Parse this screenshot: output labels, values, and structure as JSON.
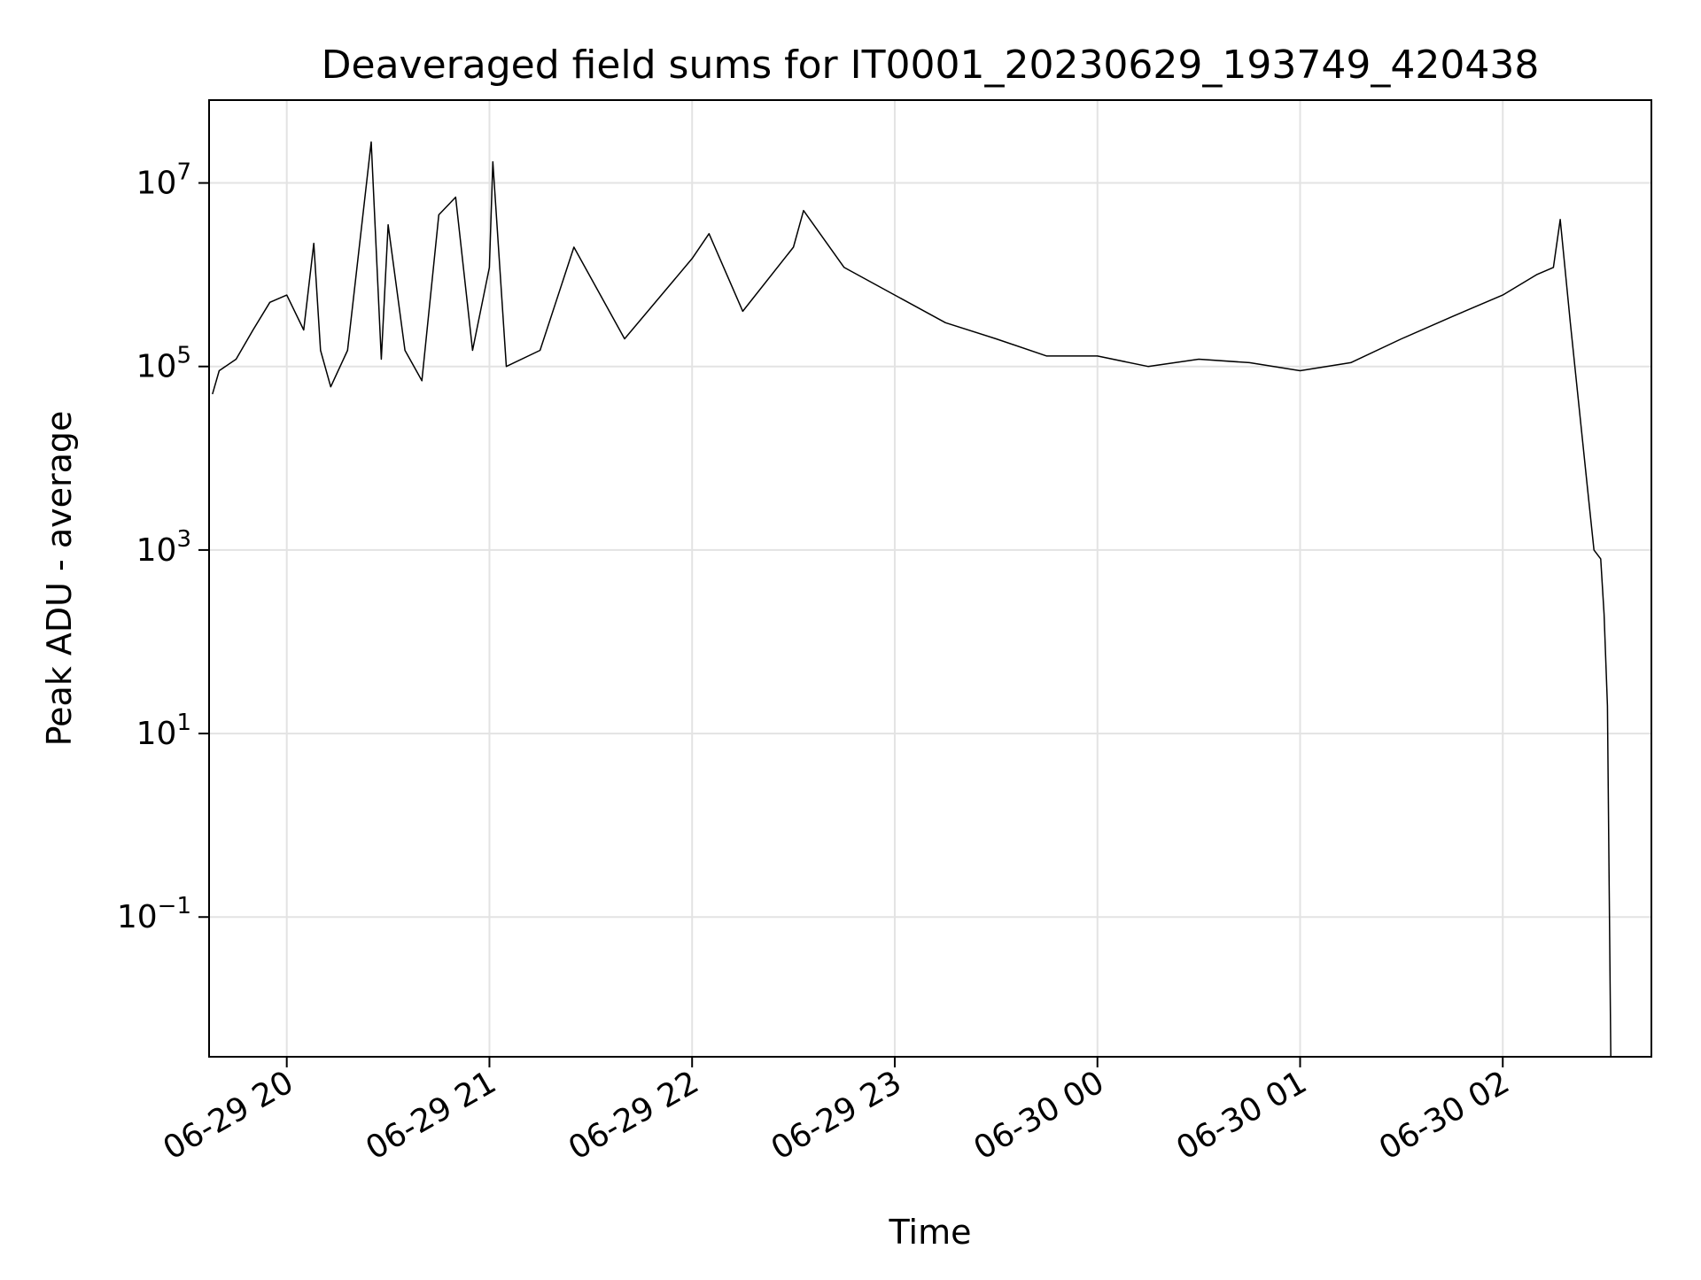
{
  "chart_data": {
    "type": "line",
    "title": "Deaveraged field sums for IT0001_20230629_193749_420438",
    "xlabel": "Time",
    "ylabel": "Peak ADU - average",
    "yscale": "log",
    "grid": true,
    "xlim": [
      "2023-06-29 19:37",
      "2023-06-30 02:44"
    ],
    "ylim": [
      0.003,
      80000000
    ],
    "x_ticks": [
      "06-29 20",
      "06-29 21",
      "06-29 22",
      "06-29 23",
      "06-30 00",
      "06-30 01",
      "06-30 02"
    ],
    "x_tick_values": [
      "2023-06-29 20:00",
      "2023-06-29 21:00",
      "2023-06-29 22:00",
      "2023-06-29 23:00",
      "2023-06-30 00:00",
      "2023-06-30 01:00",
      "2023-06-30 02:00"
    ],
    "y_ticks": [
      {
        "base": "10",
        "exp": "7",
        "value": 10000000
      },
      {
        "base": "10",
        "exp": "5",
        "value": 100000
      },
      {
        "base": "10",
        "exp": "3",
        "value": 1000
      },
      {
        "base": "10",
        "exp": "1",
        "value": 10
      },
      {
        "base": "10",
        "exp": "−1",
        "value": 0.1
      }
    ],
    "series": [
      {
        "color": "#000000",
        "points": [
          [
            "2023-06-29 19:38",
            50000
          ],
          [
            "2023-06-29 19:40",
            90000
          ],
          [
            "2023-06-29 19:45",
            120000
          ],
          [
            "2023-06-29 19:50",
            250000
          ],
          [
            "2023-06-29 19:55",
            500000
          ],
          [
            "2023-06-29 20:00",
            600000
          ],
          [
            "2023-06-29 20:05",
            250000
          ],
          [
            "2023-06-29 20:08",
            2200000
          ],
          [
            "2023-06-29 20:10",
            150000
          ],
          [
            "2023-06-29 20:13",
            60000
          ],
          [
            "2023-06-29 20:18",
            150000
          ],
          [
            "2023-06-29 20:25",
            28000000
          ],
          [
            "2023-06-29 20:28",
            120000
          ],
          [
            "2023-06-29 20:30",
            3500000
          ],
          [
            "2023-06-29 20:35",
            150000
          ],
          [
            "2023-06-29 20:40",
            70000
          ],
          [
            "2023-06-29 20:45",
            4500000
          ],
          [
            "2023-06-29 20:50",
            7000000
          ],
          [
            "2023-06-29 20:55",
            150000
          ],
          [
            "2023-06-29 21:00",
            1200000
          ],
          [
            "2023-06-29 21:01",
            17000000
          ],
          [
            "2023-06-29 21:05",
            100000
          ],
          [
            "2023-06-29 21:15",
            150000
          ],
          [
            "2023-06-29 21:25",
            2000000
          ],
          [
            "2023-06-29 21:40",
            200000
          ],
          [
            "2023-06-29 22:00",
            1500000
          ],
          [
            "2023-06-29 22:05",
            2800000
          ],
          [
            "2023-06-29 22:15",
            400000
          ],
          [
            "2023-06-29 22:30",
            2000000
          ],
          [
            "2023-06-29 22:33",
            5000000
          ],
          [
            "2023-06-29 22:45",
            1200000
          ],
          [
            "2023-06-29 23:00",
            600000
          ],
          [
            "2023-06-29 23:15",
            300000
          ],
          [
            "2023-06-29 23:30",
            200000
          ],
          [
            "2023-06-29 23:45",
            130000
          ],
          [
            "2023-06-30 00:00",
            130000
          ],
          [
            "2023-06-30 00:15",
            100000
          ],
          [
            "2023-06-30 00:30",
            120000
          ],
          [
            "2023-06-30 00:45",
            110000
          ],
          [
            "2023-06-30 01:00",
            90000
          ],
          [
            "2023-06-30 01:15",
            110000
          ],
          [
            "2023-06-30 01:30",
            200000
          ],
          [
            "2023-06-30 01:45",
            350000
          ],
          [
            "2023-06-30 02:00",
            600000
          ],
          [
            "2023-06-30 02:10",
            1000000
          ],
          [
            "2023-06-30 02:15",
            1200000
          ],
          [
            "2023-06-30 02:17",
            4000000
          ],
          [
            "2023-06-30 02:20",
            300000
          ],
          [
            "2023-06-30 02:25",
            5000
          ],
          [
            "2023-06-30 02:27",
            1000
          ],
          [
            "2023-06-30 02:29",
            800
          ],
          [
            "2023-06-30 02:30",
            200
          ],
          [
            "2023-06-30 02:31",
            20
          ],
          [
            "2023-06-30 02:32",
            0.003
          ]
        ]
      }
    ]
  }
}
